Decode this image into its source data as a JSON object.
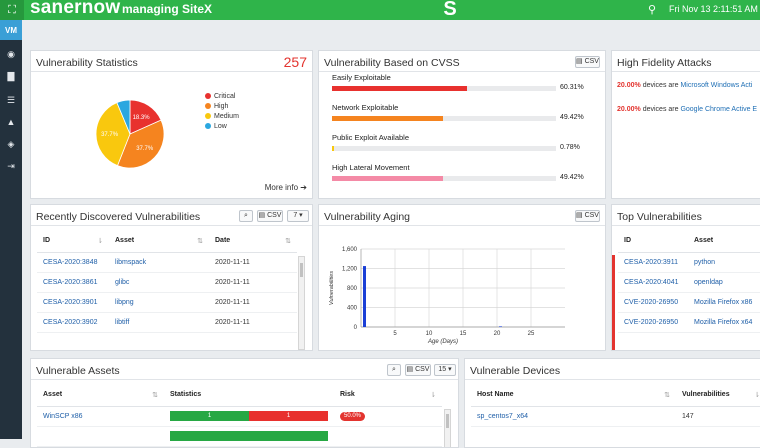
{
  "header": {
    "brand": "sanernow",
    "managing": "managing  SiteX",
    "datetime": "Fri Nov 13  2:11:51 AM"
  },
  "sidebar": {
    "active": "VM"
  },
  "vuln_stats": {
    "title": "Vulnerability Statistics",
    "count": "257",
    "more_info": "More info",
    "legend": [
      {
        "label": "Critical",
        "color": "#e8312e"
      },
      {
        "label": "High",
        "color": "#f5841f"
      },
      {
        "label": "Medium",
        "color": "#f9c80e"
      },
      {
        "label": "Low",
        "color": "#2aa7e0"
      }
    ],
    "slices": [
      {
        "label": "18.3%",
        "value": 18.3,
        "color": "#e8312e"
      },
      {
        "label": "37.7%",
        "value": 37.7,
        "color": "#f5841f"
      },
      {
        "label": "37.7%",
        "value": 37.7,
        "color": "#f9c80e"
      },
      {
        "label": "",
        "value": 6.3,
        "color": "#2aa7e0"
      }
    ]
  },
  "cvss": {
    "title": "Vulnerability Based on CVSS",
    "csv": "CSV",
    "items": [
      {
        "label": "Easily Exploitable",
        "pct": "60.31%",
        "value": 60.31,
        "color": "#e8312e"
      },
      {
        "label": "Network Exploitable",
        "pct": "49.42%",
        "value": 49.42,
        "color": "#f5841f"
      },
      {
        "label": "Public Exploit Available",
        "pct": "0.78%",
        "value": 0.78,
        "color": "#f9c80e"
      },
      {
        "label": "High Lateral Movement",
        "pct": "49.42%",
        "value": 49.42,
        "color": "#f48aa6"
      }
    ]
  },
  "hfa": {
    "title": "High Fidelity Attacks",
    "rows": [
      {
        "pct": "20.00%",
        "text": "devices are",
        "link": "Microsoft Windows Acti"
      },
      {
        "pct": "20.00%",
        "text": "devices are",
        "link": "Google Chrome Active E"
      }
    ]
  },
  "recent": {
    "title": "Recently Discovered Vulnerabilities",
    "csv": "CSV",
    "page_size": "7",
    "headers": [
      "ID",
      "Asset",
      "Date"
    ],
    "rows": [
      [
        "CESA-2020:3848",
        "libmspack",
        "2020-11-11"
      ],
      [
        "CESA-2020:3861",
        "glibc",
        "2020-11-11"
      ],
      [
        "CESA-2020:3901",
        "libpng",
        "2020-11-11"
      ],
      [
        "CESA-2020:3902",
        "libtiff",
        "2020-11-11"
      ]
    ]
  },
  "aging": {
    "title": "Vulnerability Aging",
    "csv": "CSV",
    "ylabel": "Vulnerabilities",
    "xlabel": "Age (Days)"
  },
  "top": {
    "title": "Top Vulnerabilities",
    "headers": [
      "ID",
      "Asset"
    ],
    "rows": [
      [
        "CESA-2020:3911",
        "python"
      ],
      [
        "CESA-2020:4041",
        "openldap"
      ],
      [
        "CVE-2020-26950",
        "Mozilla Firefox x86"
      ],
      [
        "CVE-2020-26950",
        "Mozilla Firefox x64"
      ]
    ]
  },
  "assets": {
    "title": "Vulnerable Assets",
    "csv": "CSV",
    "page_size": "15",
    "headers": [
      "Asset",
      "Statistics",
      "Risk"
    ],
    "rows": [
      {
        "asset": "WinSCP x86",
        "green": "1",
        "red": "1",
        "risk": "50.0%"
      }
    ]
  },
  "devices": {
    "title": "Vulnerable Devices",
    "headers": [
      "Host Name",
      "Vulnerabilities"
    ],
    "rows": [
      [
        "sp_centos7_x64",
        "147"
      ]
    ]
  },
  "chart_data": {
    "type": "bar",
    "title": "Vulnerability Aging",
    "xlabel": "Age (Days)",
    "ylabel": "Vulnerabilities",
    "xlim": [
      0,
      30
    ],
    "ylim": [
      0,
      1600
    ],
    "xticks": [
      5,
      10,
      15,
      20,
      25
    ],
    "yticks": [
      0,
      400,
      800,
      1200,
      1600
    ],
    "yticklabels": [
      "0",
      "400",
      "800",
      "1,200",
      "1,600"
    ],
    "x": [
      0,
      20
    ],
    "values": [
      1250,
      12
    ],
    "grid": true
  }
}
